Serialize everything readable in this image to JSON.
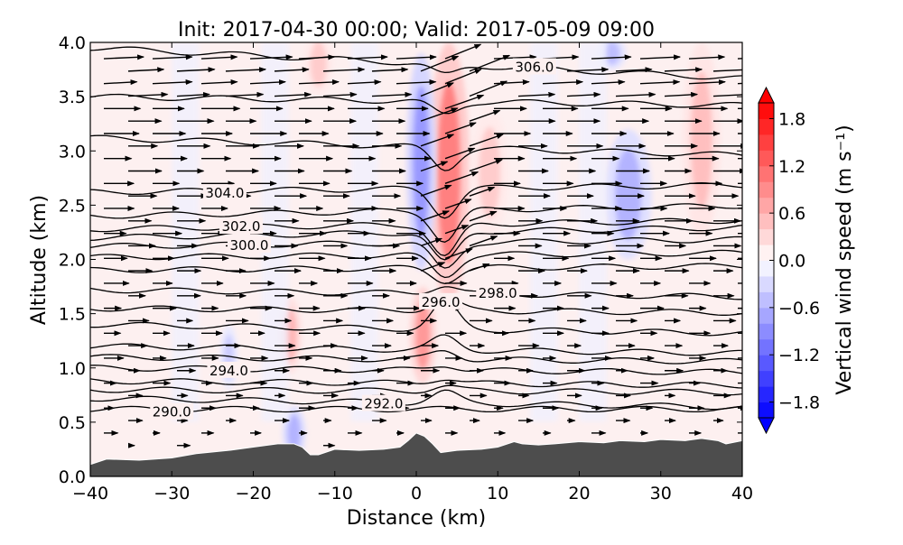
{
  "chart_data": {
    "type": "heatmap",
    "title": "Init: 2017-04-30 00:00; Valid: 2017-05-09 09:00",
    "xlabel": "Distance (km)",
    "ylabel": "Altitude (km)",
    "xlim": [
      -40,
      40
    ],
    "ylim": [
      0,
      4
    ],
    "xticks": [
      "−40",
      "−30",
      "−20",
      "−10",
      "0",
      "10",
      "20",
      "30",
      "40"
    ],
    "xtick_values": [
      -40,
      -30,
      -20,
      -10,
      0,
      10,
      20,
      30,
      40
    ],
    "yticks": [
      "0.0",
      "0.5",
      "1.0",
      "1.5",
      "2.0",
      "2.5",
      "3.0",
      "3.5",
      "4.0"
    ],
    "ytick_values": [
      0,
      0.5,
      1,
      1.5,
      2,
      2.5,
      3,
      3.5,
      4
    ],
    "colorbar": {
      "label": "Vertical wind speed (m s⁻¹)",
      "range": [
        -2,
        2
      ],
      "step": 0.2,
      "ticks": [
        "1.8",
        "1.2",
        "0.6",
        "0.0",
        "−0.6",
        "−1.2",
        "−1.8"
      ],
      "tick_values": [
        1.8,
        1.2,
        0.6,
        0,
        -0.6,
        -1.2,
        -1.8
      ],
      "extend": "both",
      "colormap": "bwr"
    },
    "vertical_wind_features": [
      {
        "x": 4,
        "alt": 2.8,
        "wx": 1.4,
        "walt": 1.2,
        "w": 1.0
      },
      {
        "x": 0.8,
        "alt": 1.3,
        "wx": 0.9,
        "walt": 0.45,
        "w": 0.8
      },
      {
        "x": 0.6,
        "alt": 2.9,
        "wx": 1.0,
        "walt": 1.0,
        "w": -0.8
      },
      {
        "x": 26,
        "alt": 2.6,
        "wx": 1.6,
        "walt": 0.6,
        "w": -0.6
      },
      {
        "x": 35,
        "alt": 3.1,
        "wx": 1.3,
        "walt": 0.9,
        "w": 0.5
      },
      {
        "x": 9,
        "alt": 2.8,
        "wx": 1.3,
        "walt": 0.6,
        "w": 0.4
      },
      {
        "x": -15,
        "alt": 0.4,
        "wx": 0.8,
        "walt": 0.25,
        "w": -0.6
      },
      {
        "x": -15.5,
        "alt": 1.3,
        "wx": 0.8,
        "walt": 0.35,
        "w": 0.6
      },
      {
        "x": -12,
        "alt": 3.8,
        "wx": 1.0,
        "walt": 0.3,
        "w": 0.4
      },
      {
        "x": 24,
        "alt": 3.9,
        "wx": 1.0,
        "walt": 0.15,
        "w": -0.5
      },
      {
        "x": -23,
        "alt": 1.1,
        "wx": 0.6,
        "walt": 0.3,
        "w": -0.4
      }
    ],
    "terrain": {
      "distance": [
        -40,
        -38,
        -34,
        -30,
        -27,
        -23,
        -20,
        -17,
        -15,
        -14,
        -13,
        -12,
        -10,
        -7,
        -4,
        -2,
        -1,
        0,
        1,
        2,
        3,
        5,
        8,
        10,
        12,
        13,
        15,
        17,
        20,
        23,
        25,
        28,
        30,
        33,
        35,
        37,
        38,
        40
      ],
      "altitude": [
        0.11,
        0.16,
        0.15,
        0.17,
        0.21,
        0.24,
        0.27,
        0.3,
        0.3,
        0.27,
        0.2,
        0.2,
        0.25,
        0.24,
        0.25,
        0.27,
        0.33,
        0.4,
        0.37,
        0.3,
        0.22,
        0.24,
        0.25,
        0.27,
        0.32,
        0.3,
        0.29,
        0.3,
        0.32,
        0.31,
        0.33,
        0.32,
        0.34,
        0.33,
        0.35,
        0.33,
        0.3,
        0.33
      ]
    },
    "potential_temperature_contours": [
      {
        "level": 306.0,
        "base": 3.95,
        "slope": -0.0035,
        "dip": 0.1,
        "label": "306.0",
        "label_x": 14.5
      },
      {
        "level": 305.5,
        "base": 3.5,
        "slope": -0.001,
        "dip": 0.12,
        "label": null
      },
      {
        "level": 305.0,
        "base": 3.12,
        "slope": -0.002,
        "dip": 0.2,
        "label": null
      },
      {
        "level": 304.0,
        "base": 2.62,
        "slope": 0.0008,
        "dip": 0.25,
        "label": "304.0",
        "label_x": -23.5
      },
      {
        "level": 303.0,
        "base": 2.4,
        "slope": 0.0012,
        "dip": 0.28,
        "label": null
      },
      {
        "level": 302.0,
        "base": 2.28,
        "slope": 0.001,
        "dip": 0.3,
        "label": "302.0",
        "label_x": -21.5
      },
      {
        "level": 301.0,
        "base": 2.2,
        "slope": 0.0012,
        "dip": 0.28,
        "label": null
      },
      {
        "level": 300.0,
        "base": 2.12,
        "slope": 0.0008,
        "dip": 0.25,
        "label": "300.0",
        "label_x": -20.5
      },
      {
        "level": 299.0,
        "base": 2.02,
        "slope": 0.0005,
        "dip": 0.2,
        "label": null
      },
      {
        "level": 298.5,
        "base": 1.9,
        "slope": 0.0005,
        "dip": 0.12,
        "label": null
      },
      {
        "level": 298.0,
        "base": 1.72,
        "slope": -0.0008,
        "dip": -0.08,
        "label": "298.0",
        "label_x": 10
      },
      {
        "level": 297.0,
        "base": 1.55,
        "slope": -0.0005,
        "dip": -0.12,
        "label": null
      },
      {
        "level": 296.0,
        "base": 1.4,
        "slope": -0.001,
        "dip": -0.25,
        "label": "296.0",
        "label_x": 3
      },
      {
        "level": 295.0,
        "base": 1.2,
        "slope": -0.0008,
        "dip": -0.12,
        "label": null
      },
      {
        "level": 294.5,
        "base": 1.1,
        "slope": -0.0005,
        "dip": -0.08,
        "label": null
      },
      {
        "level": 294.0,
        "base": 1.0,
        "slope": -0.0005,
        "dip": -0.05,
        "label": "294.0",
        "label_x": -23
      },
      {
        "level": 293.0,
        "base": 0.88,
        "slope": -0.0005,
        "dip": -0.05,
        "label": null
      },
      {
        "level": 292.5,
        "base": 0.8,
        "slope": -0.0003,
        "dip": -0.05,
        "label": null
      },
      {
        "level": 292.0,
        "base": 0.72,
        "slope": -0.001,
        "dip": -0.1,
        "label": "292.0",
        "label_x": -4
      },
      {
        "level": 290.0,
        "base": 0.62,
        "slope": 0.0,
        "dip": 0.0,
        "label": "290.0",
        "label_x": -30
      }
    ]
  }
}
